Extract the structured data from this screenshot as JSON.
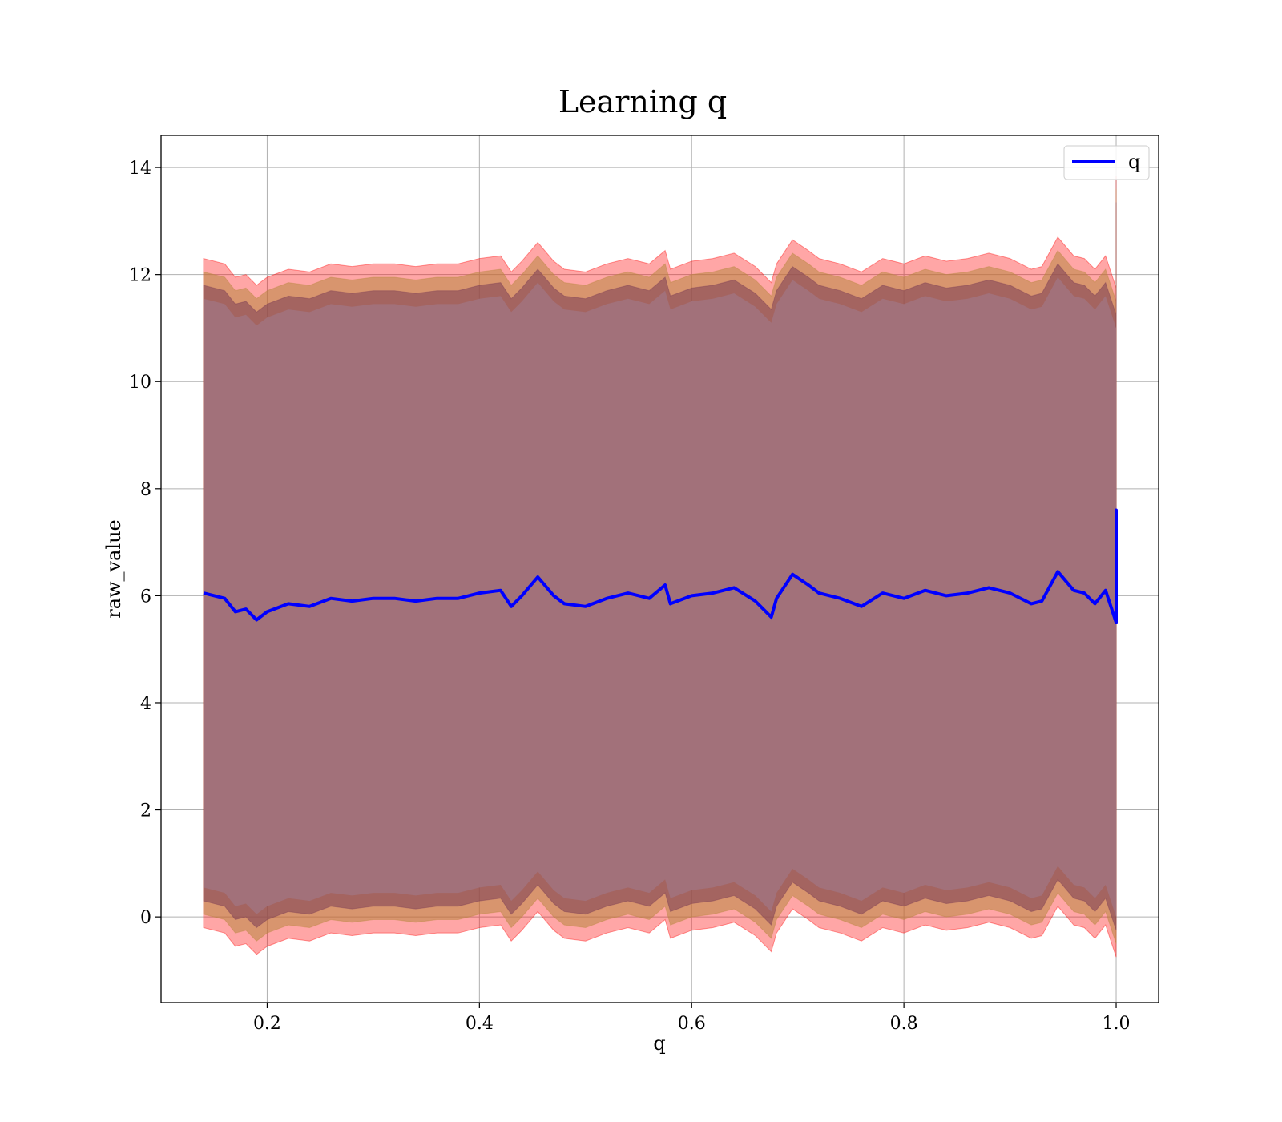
{
  "chart_data": {
    "type": "line",
    "title": "Learning q",
    "xlabel": "q",
    "ylabel": "raw_value",
    "xlim": [
      0.1,
      1.04
    ],
    "ylim": [
      -1.6,
      14.6
    ],
    "xticks": [
      0.2,
      0.4,
      0.6,
      0.8,
      1.0
    ],
    "xtick_labels": [
      "0.2",
      "0.4",
      "0.6",
      "0.8",
      "1.0"
    ],
    "yticks": [
      0,
      2,
      4,
      6,
      8,
      10,
      12,
      14
    ],
    "ytick_labels": [
      "0",
      "2",
      "4",
      "6",
      "8",
      "10",
      "12",
      "14"
    ],
    "grid": true,
    "legend": {
      "position": "top-right",
      "entries": [
        "q"
      ]
    },
    "colors": {
      "line": "#0000ff",
      "band_outer": "#ff0000",
      "band_mid": "#b8873f",
      "band_inner": "#7a3d55",
      "core": "#a2717a",
      "grid": "#b0b0b0"
    },
    "series": [
      {
        "name": "q",
        "x": [
          0.14,
          0.16,
          0.17,
          0.18,
          0.19,
          0.2,
          0.22,
          0.24,
          0.26,
          0.28,
          0.3,
          0.32,
          0.34,
          0.36,
          0.38,
          0.4,
          0.42,
          0.43,
          0.44,
          0.455,
          0.47,
          0.48,
          0.5,
          0.52,
          0.54,
          0.56,
          0.575,
          0.58,
          0.6,
          0.62,
          0.64,
          0.66,
          0.675,
          0.68,
          0.695,
          0.71,
          0.72,
          0.74,
          0.76,
          0.78,
          0.8,
          0.82,
          0.84,
          0.86,
          0.88,
          0.9,
          0.92,
          0.93,
          0.945,
          0.96,
          0.97,
          0.98,
          0.99,
          1.0,
          1.0,
          1.0
        ],
        "y": [
          6.05,
          5.95,
          5.7,
          5.75,
          5.55,
          5.7,
          5.85,
          5.8,
          5.95,
          5.9,
          5.95,
          5.95,
          5.9,
          5.95,
          5.95,
          6.05,
          6.1,
          5.8,
          6.0,
          6.35,
          6.0,
          5.85,
          5.8,
          5.95,
          6.05,
          5.95,
          6.2,
          5.85,
          6.0,
          6.05,
          6.15,
          5.9,
          5.6,
          5.95,
          6.4,
          6.2,
          6.05,
          5.95,
          5.8,
          6.05,
          5.95,
          6.1,
          6.0,
          6.05,
          6.15,
          6.05,
          5.85,
          5.9,
          6.45,
          6.1,
          6.05,
          5.85,
          6.1,
          5.5,
          7.6,
          5.8
        ]
      }
    ],
    "bands": [
      {
        "upper_offset": 6.25,
        "lower_offset": 6.25
      },
      {
        "upper_offset": 6.0,
        "lower_offset": 6.0
      },
      {
        "upper_offset": 5.75,
        "lower_offset": 5.75
      }
    ]
  }
}
